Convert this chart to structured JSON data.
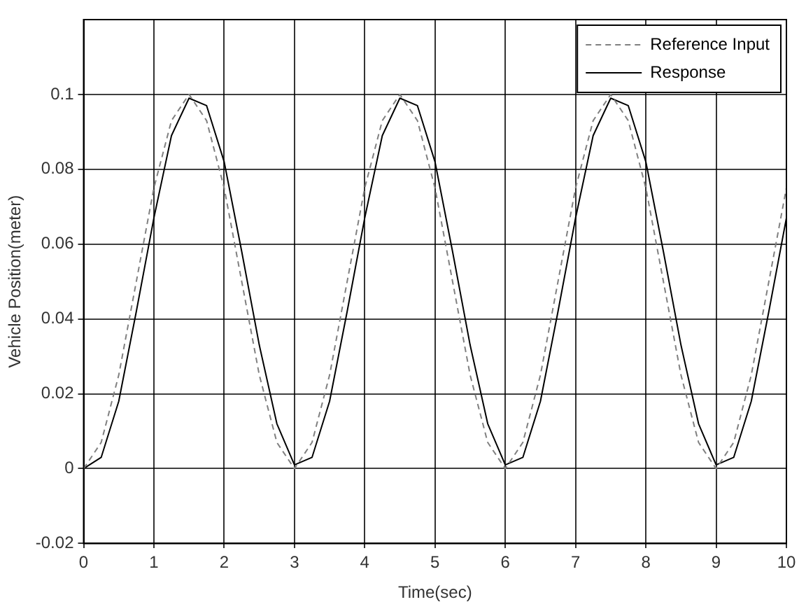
{
  "chart_data": {
    "type": "line",
    "xlabel": "Time(sec)",
    "ylabel": "Vehicle Position(meter)",
    "x": [
      0,
      0.25,
      0.5,
      0.75,
      1,
      1.25,
      1.5,
      1.75,
      2,
      2.25,
      2.5,
      2.75,
      3,
      3.25,
      3.5,
      3.75,
      4,
      4.25,
      4.5,
      4.75,
      5,
      5.25,
      5.5,
      5.75,
      6,
      6.25,
      6.5,
      6.75,
      7,
      7.25,
      7.5,
      7.75,
      8,
      8.25,
      8.5,
      8.75,
      9,
      9.25,
      9.5,
      9.75,
      10
    ],
    "series": [
      {
        "name": "Reference Input",
        "color": "#808080",
        "line_style": "dashed",
        "values": [
          0,
          0.007,
          0.025,
          0.05,
          0.075,
          0.093,
          0.1,
          0.093,
          0.075,
          0.05,
          0.025,
          0.007,
          0,
          0.007,
          0.025,
          0.05,
          0.075,
          0.093,
          0.1,
          0.093,
          0.075,
          0.05,
          0.025,
          0.007,
          0,
          0.007,
          0.025,
          0.05,
          0.075,
          0.093,
          0.1,
          0.093,
          0.075,
          0.05,
          0.025,
          0.007,
          0,
          0.007,
          0.025,
          0.05,
          0.075
        ]
      },
      {
        "name": "Response",
        "color": "#000000",
        "line_style": "solid",
        "values": [
          0,
          0.003,
          0.018,
          0.042,
          0.067,
          0.089,
          0.099,
          0.097,
          0.082,
          0.058,
          0.033,
          0.012,
          0.001,
          0.003,
          0.018,
          0.042,
          0.067,
          0.089,
          0.099,
          0.097,
          0.082,
          0.058,
          0.033,
          0.012,
          0.001,
          0.003,
          0.018,
          0.042,
          0.067,
          0.089,
          0.099,
          0.097,
          0.082,
          0.058,
          0.033,
          0.012,
          0.001,
          0.003,
          0.018,
          0.042,
          0.067
        ]
      }
    ],
    "xlim": [
      0,
      10
    ],
    "xticks": [
      0,
      1,
      2,
      3,
      4,
      5,
      6,
      7,
      8,
      9,
      10
    ],
    "ylim": [
      -0.02,
      0.12
    ],
    "yticks": [
      -0.02,
      0,
      0.02,
      0.04,
      0.06,
      0.08,
      0.1
    ],
    "grid": true,
    "legend": "top right",
    "marker": "none"
  }
}
